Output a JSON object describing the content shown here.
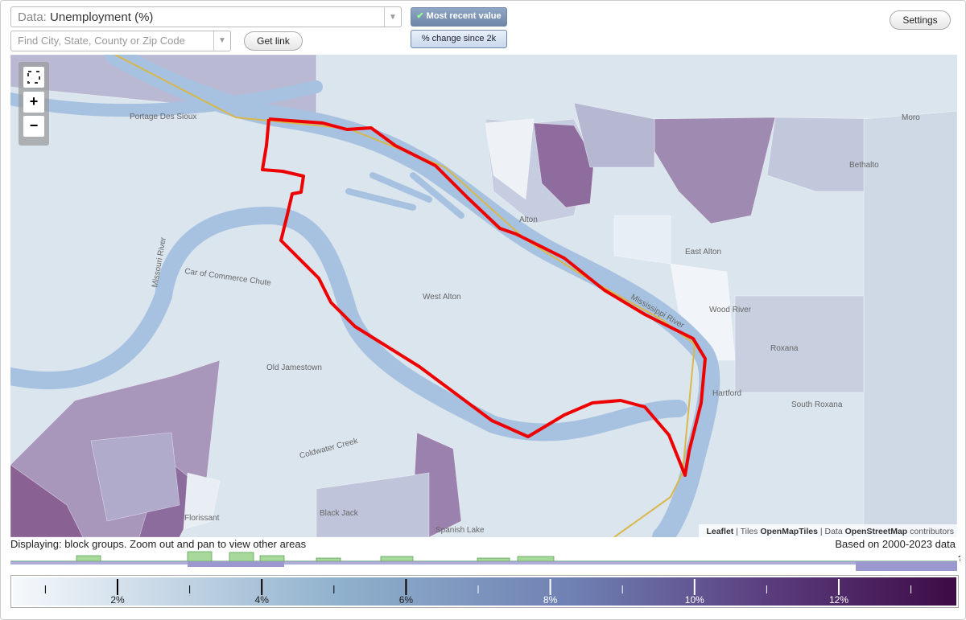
{
  "toolbar": {
    "data_label": "Data:",
    "data_value": "Unemployment (%)",
    "mode_active": "Most recent value",
    "mode_other": "% change since 2k",
    "search_placeholder": "Find City, State, County or Zip Code",
    "get_link": "Get link",
    "settings": "Settings"
  },
  "map": {
    "zoom_in": "+",
    "zoom_out": "−",
    "labels": [
      "Portage Des Sioux",
      "Alton",
      "Moro",
      "Bethalto",
      "East Alton",
      "Wood River",
      "West Alton",
      "Roxana",
      "Hartford",
      "South Roxana",
      "Old Jamestown",
      "Florissant",
      "Black Jack",
      "Spanish Lake",
      "Coldwater Creek",
      "Missouri River",
      "Car of Commerce Chute",
      "Mississippi River"
    ],
    "attribution": {
      "leaflet": "Leaflet",
      "tiles_label": "Tiles",
      "tiles": "OpenMapTiles",
      "data_label": "Data",
      "data": "OpenStreetMap",
      "contributors": "contributors"
    }
  },
  "status": {
    "displaying": "Displaying: block groups. Zoom out and pan to view other areas",
    "based_on": "Based on 2000-2023 data",
    "help": "?"
  },
  "legend": {
    "labels": [
      "2%",
      "4%",
      "6%",
      "8%",
      "10%",
      "12%"
    ]
  }
}
